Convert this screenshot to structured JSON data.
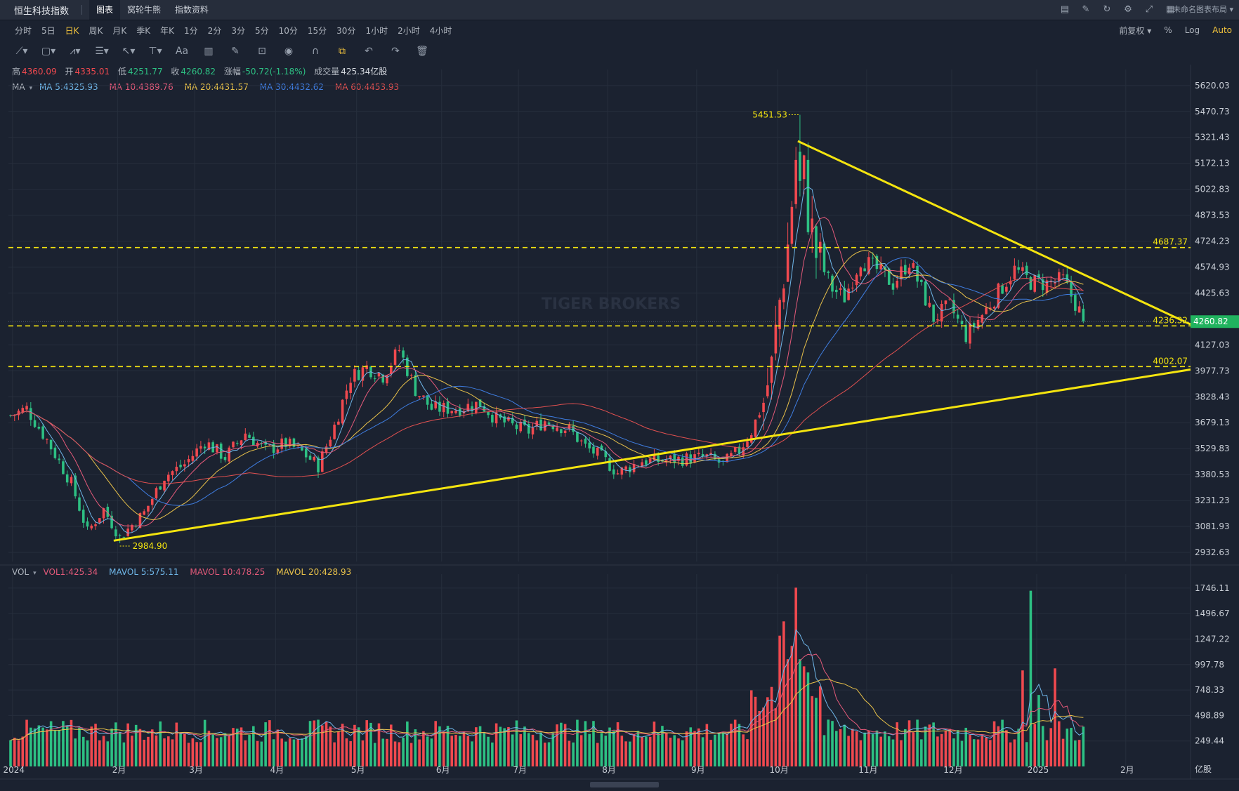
{
  "title_bar": {
    "app_title": "恒生科技指数",
    "tabs": [
      "图表",
      "窝轮牛熊",
      "指数资料"
    ],
    "active_tab": 0,
    "icons": [
      "chart-icon",
      "edit-icon",
      "refresh-icon",
      "settings-icon",
      "fullscreen-icon",
      "grid-icon"
    ],
    "layout_name": "未命名图表布局"
  },
  "periods": [
    "分时",
    "5日",
    "日K",
    "周K",
    "月K",
    "季K",
    "年K",
    "1分",
    "2分",
    "3分",
    "5分",
    "10分",
    "15分",
    "30分",
    "1小时",
    "2小时",
    "4小时"
  ],
  "active_period": 2,
  "right_controls": {
    "adjust": "前复权",
    "percent": "%",
    "log": "Log",
    "auto": "Auto"
  },
  "quote": {
    "high_label": "高",
    "high": "4360.09",
    "open_label": "开",
    "open": "4335.01",
    "low_label": "低",
    "low": "4251.77",
    "close_label": "收",
    "close": "4260.82",
    "change_label": "涨幅",
    "change": "-50.72(-1.18%)",
    "turnover_label": "成交量",
    "turnover": "425.34亿股"
  },
  "ma": {
    "label": "MA",
    "ma5": "MA 5:4325.93",
    "ma10": "MA 10:4389.76",
    "ma20": "MA 20:4431.57",
    "ma30": "MA 30:4432.62",
    "ma60": "MA 60:4453.93"
  },
  "vol": {
    "label": "VOL",
    "vol1": "VOL1:425.34",
    "mavol5": "MAVOL 5:575.11",
    "mavol10": "MAVOL 10:478.25",
    "mavol20": "MAVOL 20:428.93"
  },
  "colors": {
    "up": "#f0494f",
    "down": "#2dc083",
    "trend": "#f4e40f",
    "bg": "#1b2230",
    "price_tag": "#21b35f"
  },
  "chart_data": {
    "type": "candlestick",
    "price_axis": [
      "5620.03",
      "5470.73",
      "5321.43",
      "5172.13",
      "5022.83",
      "4873.53",
      "4724.23",
      "4574.93",
      "4425.63",
      "4127.03",
      "3977.73",
      "3828.43",
      "3679.13",
      "3529.83",
      "3380.53",
      "3231.23",
      "3081.93",
      "2932.63"
    ],
    "price_range": [
      2880,
      5680
    ],
    "volume_axis": [
      "1746.11",
      "1496.67",
      "1247.22",
      "997.78",
      "748.33",
      "498.89",
      "249.44"
    ],
    "volume_unit": "亿股",
    "volume_range": [
      0,
      1800
    ],
    "x_labels": [
      {
        "label": "2024",
        "day": 1
      },
      {
        "label": "2月",
        "day": 27
      },
      {
        "label": "3月",
        "day": 46
      },
      {
        "label": "4月",
        "day": 66
      },
      {
        "label": "5月",
        "day": 86
      },
      {
        "label": "6月",
        "day": 107
      },
      {
        "label": "7月",
        "day": 126
      },
      {
        "label": "8月",
        "day": 148
      },
      {
        "label": "9月",
        "day": 170
      },
      {
        "label": "10月",
        "day": 190
      },
      {
        "label": "11月",
        "day": 212
      },
      {
        "label": "12月",
        "day": 233
      },
      {
        "label": "2025",
        "day": 254
      },
      {
        "label": "2月",
        "day": 276
      }
    ],
    "total_days": 292,
    "visible_bars": 266,
    "anchors": [
      [
        0,
        3720
      ],
      [
        4,
        3760
      ],
      [
        9,
        3580
      ],
      [
        15,
        3330
      ],
      [
        19,
        3050
      ],
      [
        23,
        3180
      ],
      [
        27,
        3020
      ],
      [
        33,
        3160
      ],
      [
        38,
        3370
      ],
      [
        43,
        3440
      ],
      [
        48,
        3570
      ],
      [
        53,
        3480
      ],
      [
        58,
        3620
      ],
      [
        63,
        3520
      ],
      [
        68,
        3560
      ],
      [
        72,
        3510
      ],
      [
        76,
        3430
      ],
      [
        80,
        3660
      ],
      [
        84,
        3940
      ],
      [
        88,
        4000
      ],
      [
        92,
        3950
      ],
      [
        96,
        4100
      ],
      [
        100,
        3870
      ],
      [
        104,
        3760
      ],
      [
        110,
        3760
      ],
      [
        116,
        3790
      ],
      [
        120,
        3700
      ],
      [
        124,
        3660
      ],
      [
        128,
        3630
      ],
      [
        132,
        3690
      ],
      [
        138,
        3640
      ],
      [
        142,
        3540
      ],
      [
        146,
        3480
      ],
      [
        150,
        3390
      ],
      [
        156,
        3460
      ],
      [
        160,
        3460
      ],
      [
        166,
        3470
      ],
      [
        172,
        3480
      ],
      [
        176,
        3440
      ],
      [
        180,
        3520
      ],
      [
        183,
        3630
      ],
      [
        186,
        3800
      ],
      [
        188,
        4000
      ],
      [
        190,
        4380
      ],
      [
        192,
        4700
      ],
      [
        194,
        5200
      ],
      [
        195,
        5020
      ],
      [
        196,
        5100
      ],
      [
        197,
        4900
      ],
      [
        199,
        4650
      ],
      [
        203,
        4450
      ],
      [
        206,
        4400
      ],
      [
        210,
        4620
      ],
      [
        214,
        4560
      ],
      [
        218,
        4480
      ],
      [
        222,
        4610
      ],
      [
        224,
        4500
      ],
      [
        228,
        4280
      ],
      [
        232,
        4350
      ],
      [
        236,
        4180
      ],
      [
        240,
        4300
      ],
      [
        244,
        4430
      ],
      [
        248,
        4560
      ],
      [
        252,
        4490
      ],
      [
        256,
        4480
      ],
      [
        260,
        4500
      ],
      [
        262,
        4410
      ],
      [
        265,
        4280
      ]
    ],
    "high_low_labels": [
      {
        "text": "5451.53",
        "day": 195,
        "price": 5451.53
      },
      {
        "text": "2984.90",
        "day": 27,
        "price": 2984.9
      }
    ],
    "horizontal_lines": [
      {
        "label": "4687.37",
        "price": 4687.37
      },
      {
        "label": "4236.32",
        "price": 4236.32
      },
      {
        "label": "4002.07",
        "price": 4002.07
      }
    ],
    "trendlines": [
      {
        "from": [
          26,
          3000
        ],
        "to": [
          292,
          3985
        ]
      },
      {
        "from": [
          195,
          5300
        ],
        "to": [
          292,
          4245
        ]
      }
    ],
    "last_price_tag": "4260.82",
    "current_price": 4260.82,
    "volume_spikes": [
      [
        190,
        1280
      ],
      [
        191,
        1420
      ],
      [
        192,
        1050
      ],
      [
        193,
        1180
      ],
      [
        194,
        1750
      ],
      [
        195,
        1050
      ],
      [
        196,
        980
      ],
      [
        197,
        920
      ],
      [
        252,
        1720
      ],
      [
        250,
        940
      ],
      [
        258,
        960
      ],
      [
        254,
        700
      ]
    ],
    "watermark": "TIGER BROKERS"
  }
}
